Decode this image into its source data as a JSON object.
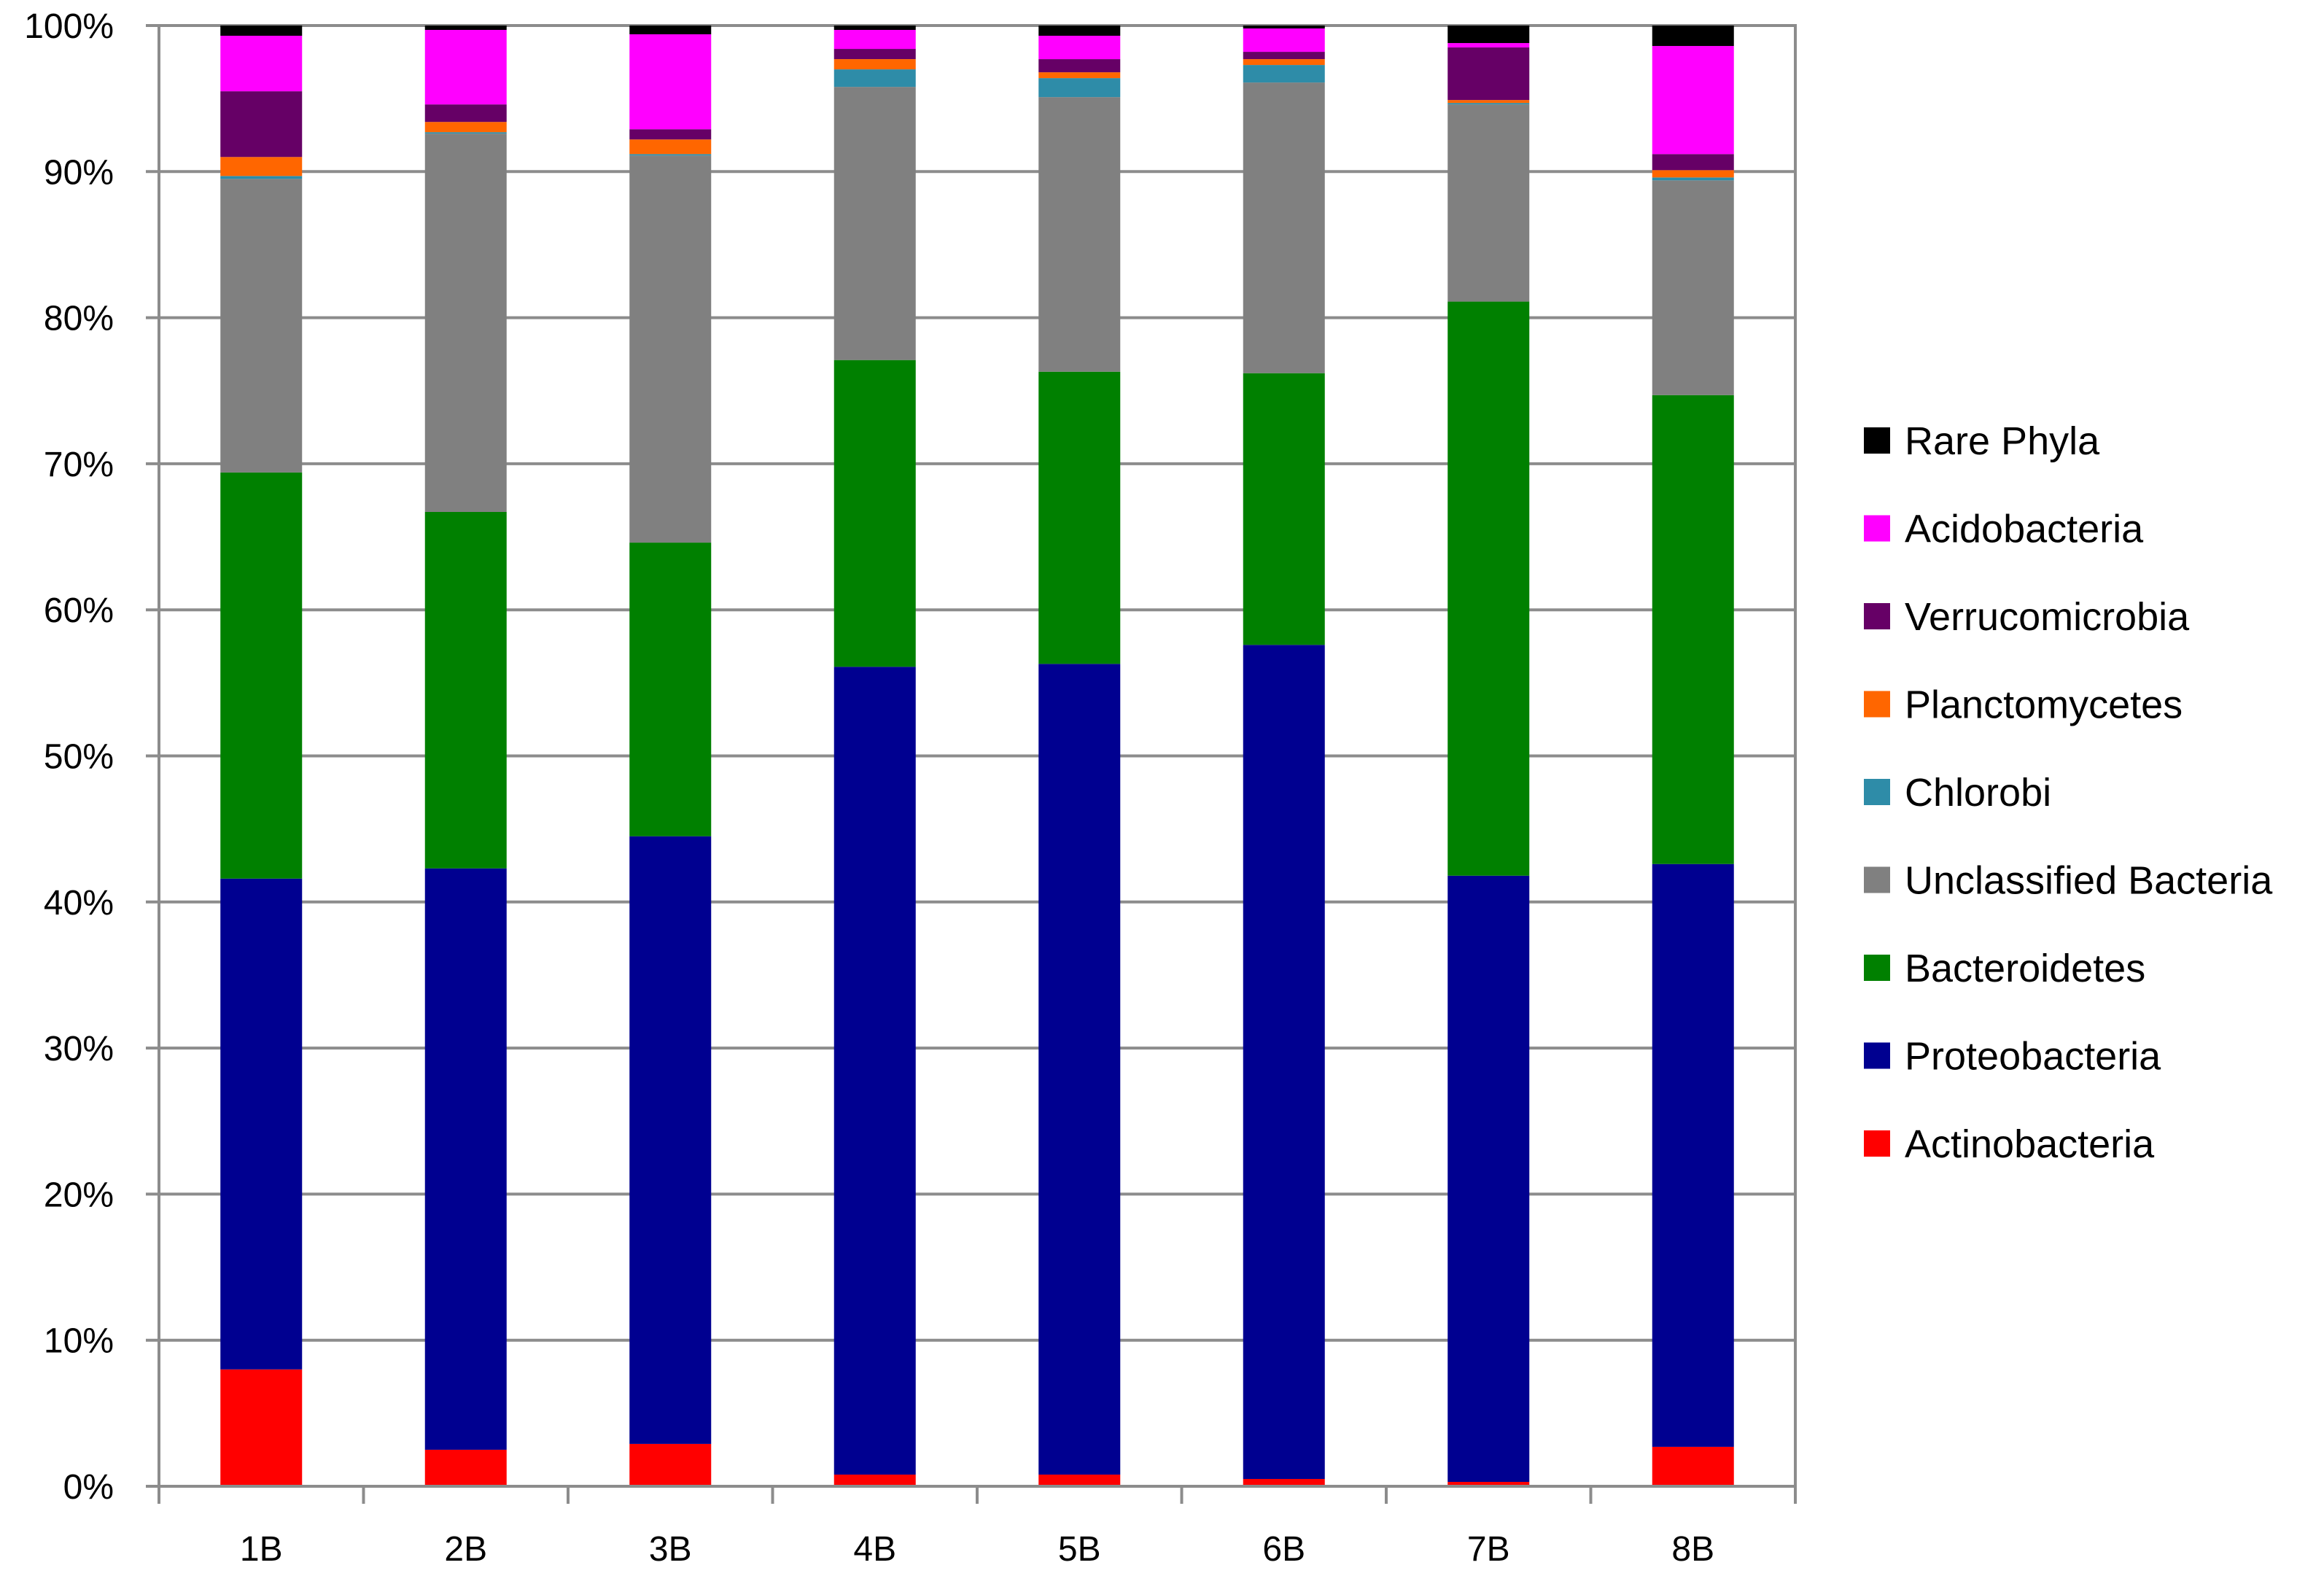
{
  "chart_data": {
    "type": "bar",
    "stacked": true,
    "percent": true,
    "title": "",
    "xlabel": "",
    "ylabel": "",
    "ylim": [
      0,
      100
    ],
    "y_ticks": [
      "0%",
      "10%",
      "20%",
      "30%",
      "40%",
      "50%",
      "60%",
      "70%",
      "80%",
      "90%",
      "100%"
    ],
    "grid": true,
    "legend_position": "right",
    "categories": [
      "1B",
      "2B",
      "3B",
      "4B",
      "5B",
      "6B",
      "7B",
      "8B"
    ],
    "series": [
      {
        "name": "Actinobacteria",
        "color": "#ff0000",
        "values": [
          8.0,
          2.5,
          2.9,
          0.8,
          0.8,
          0.5,
          0.3,
          2.7
        ]
      },
      {
        "name": "Proteobacteria",
        "color": "#000090",
        "values": [
          33.6,
          39.8,
          41.6,
          55.3,
          55.5,
          57.1,
          41.5,
          39.9
        ]
      },
      {
        "name": "Bacteroidetes",
        "color": "#008000",
        "values": [
          27.8,
          24.4,
          20.1,
          21.0,
          20.0,
          18.6,
          39.3,
          32.1
        ]
      },
      {
        "name": "Unclassified Bacteria",
        "color": "#808080",
        "values": [
          20.1,
          25.9,
          26.5,
          18.7,
          18.8,
          19.9,
          13.5,
          14.7
        ]
      },
      {
        "name": "Chlorobi",
        "color": "#2e8ca8",
        "values": [
          0.2,
          0.1,
          0.1,
          1.2,
          1.3,
          1.2,
          0.1,
          0.2
        ]
      },
      {
        "name": "Planctomycetes",
        "color": "#ff6600",
        "values": [
          1.3,
          0.7,
          1.0,
          0.7,
          0.4,
          0.4,
          0.2,
          0.5
        ]
      },
      {
        "name": "Verrucomicrobia",
        "color": "#660066",
        "values": [
          4.5,
          1.2,
          0.7,
          0.7,
          0.9,
          0.5,
          3.6,
          1.1
        ]
      },
      {
        "name": "Acidobacteria",
        "color": "#ff00ff",
        "values": [
          3.8,
          5.1,
          6.5,
          1.3,
          1.6,
          1.6,
          0.3,
          7.4
        ]
      },
      {
        "name": "Rare Phyla",
        "color": "#000000",
        "values": [
          0.7,
          0.3,
          0.6,
          0.3,
          0.7,
          0.2,
          1.2,
          1.4
        ]
      }
    ],
    "legend_order": [
      "Rare Phyla",
      "Acidobacteria",
      "Verrucomicrobia",
      "Planctomycetes",
      "Chlorobi",
      "Unclassified Bacteria",
      "Bacteroidetes",
      "Proteobacteria",
      "Actinobacteria"
    ]
  }
}
